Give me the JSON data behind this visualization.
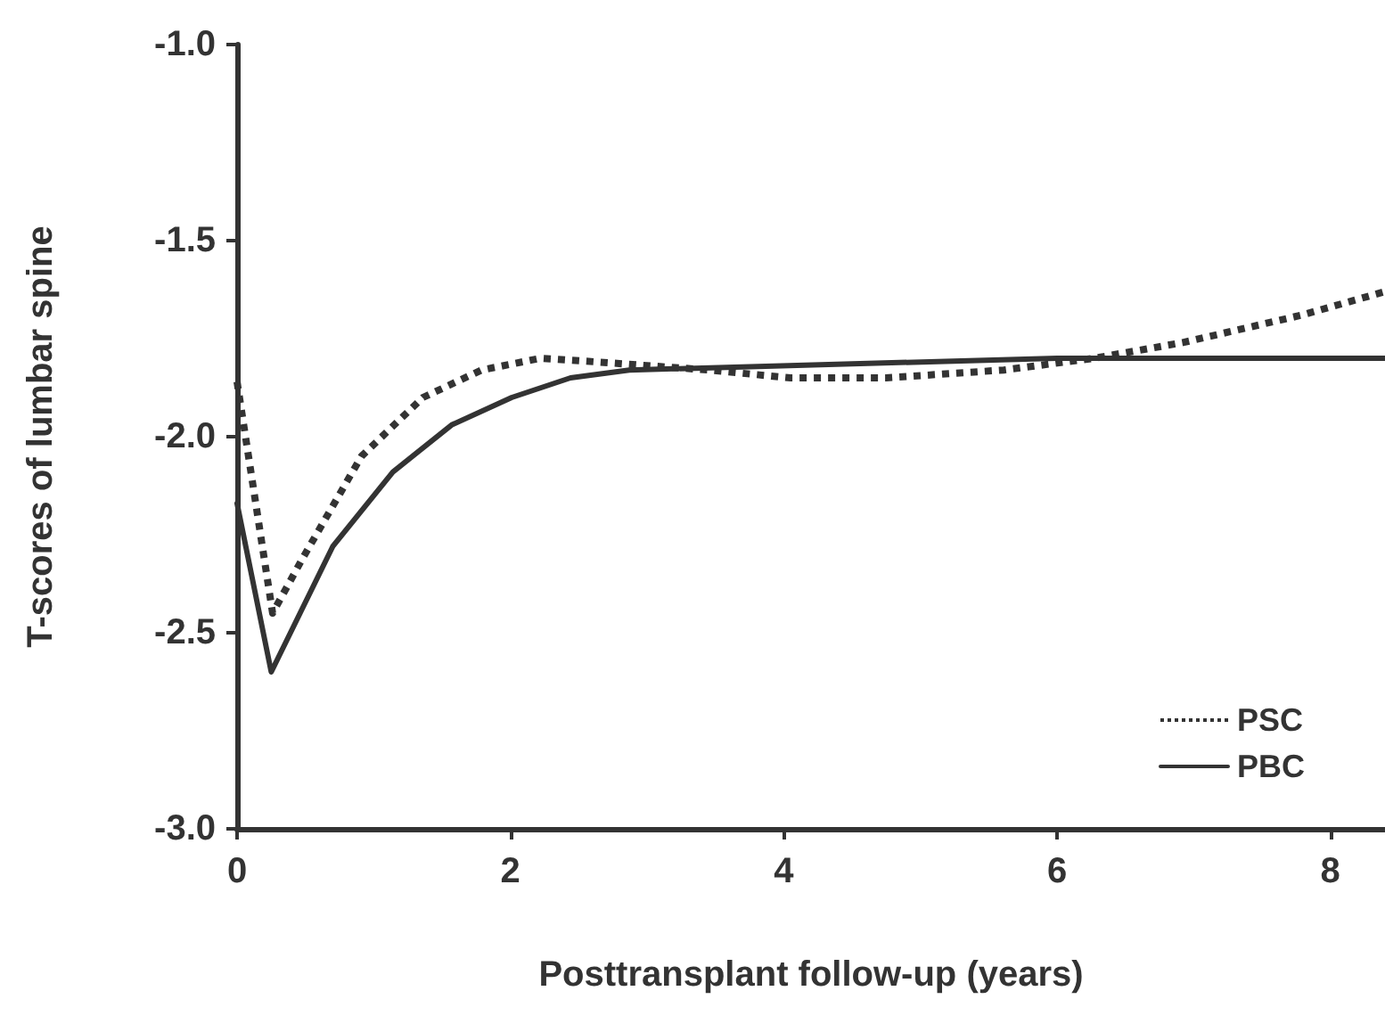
{
  "chart_data": {
    "type": "line",
    "xlabel": "Posttransplant follow-up (years)",
    "ylabel": "T-scores of lumbar spine",
    "xlim": [
      0,
      8.4
    ],
    "xticks": [
      0,
      2,
      4,
      6,
      8
    ],
    "ylim": [
      -3,
      -1
    ],
    "yticks": [
      {
        "value": -3,
        "label": "-3.0"
      },
      {
        "value": -2.5,
        "label": "-2.5"
      },
      {
        "value": -2,
        "label": "-2.0"
      },
      {
        "value": -1.5,
        "label": "-1.5"
      },
      {
        "value": -1,
        "label": "-1.0"
      }
    ],
    "grid": false,
    "legend": "bottom right",
    "marker": "none",
    "series": [
      {
        "name": "PSC",
        "color": "#333333",
        "line_style": "dotted",
        "x": [
          0,
          0.26,
          0.48,
          0.91,
          1.36,
          1.79,
          2.22,
          2.66,
          3.45,
          4.05,
          4.75,
          5.61,
          6.27,
          6.92,
          7.79,
          8.4
        ],
        "values": [
          -1.86,
          -2.45,
          -2.31,
          -2.05,
          -1.9,
          -1.83,
          -1.8,
          -1.81,
          -1.83,
          -1.85,
          -1.85,
          -1.83,
          -1.8,
          -1.76,
          -1.69,
          -1.63
        ]
      },
      {
        "name": "PBC",
        "color": "#333333",
        "line_style": "solid",
        "x": [
          0,
          0.25,
          0.7,
          1.14,
          1.57,
          2.01,
          2.44,
          2.87,
          6,
          8.4
        ],
        "values": [
          -2.17,
          -2.6,
          -2.28,
          -2.09,
          -1.97,
          -1.9,
          -1.85,
          -1.83,
          -1.8,
          -1.8
        ]
      }
    ]
  }
}
